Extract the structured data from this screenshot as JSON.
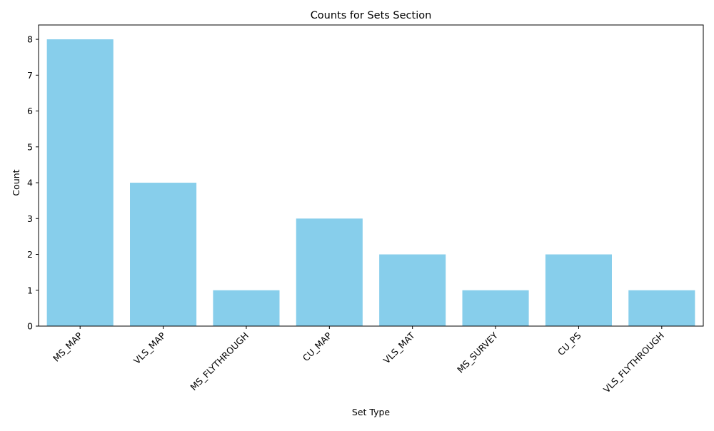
{
  "chart_data": {
    "type": "bar",
    "title": "Counts for Sets Section",
    "xlabel": "Set Type",
    "ylabel": "Count",
    "categories": [
      "MS_MAP",
      "VLS_MAP",
      "MS_FLYTHROUGH",
      "CU_MAP",
      "VLS_MAT",
      "MS_SURVEY",
      "CU_PS",
      "VLS_FLYTHROUGH"
    ],
    "values": [
      8,
      4,
      1,
      3,
      2,
      1,
      2,
      1
    ],
    "ylim": [
      0,
      8.4
    ],
    "yticks": [
      0,
      1,
      2,
      3,
      4,
      5,
      6,
      7,
      8
    ],
    "bar_color": "#87CEEB",
    "grid": false,
    "legend": "none"
  }
}
